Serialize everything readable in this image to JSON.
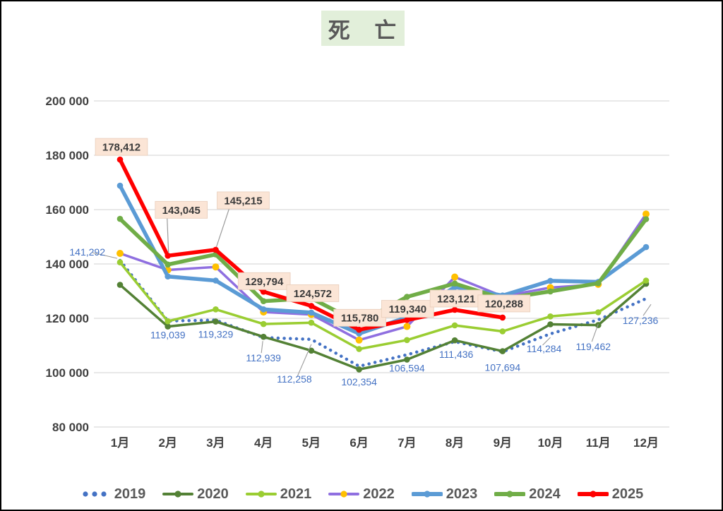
{
  "title": "死 亡",
  "colors": {
    "title_bg": "#e2efda",
    "title_text": "#595959",
    "axis_text": "#404040",
    "grid": "#d9d9d9",
    "label_box_bg": "#fbe5d6",
    "label_box_border": "#e8cdba",
    "boxed_label_text": "#3b3b3b",
    "plain_label_text": "#4472c4",
    "leader_line": "#9a9a9a",
    "legend_text": "#595959"
  },
  "chart_data": {
    "type": "line",
    "title": "死 亡",
    "categories": [
      "1月",
      "2月",
      "3月",
      "4月",
      "5月",
      "6月",
      "7月",
      "8月",
      "9月",
      "10月",
      "11月",
      "12月"
    ],
    "ylim": [
      80000,
      200000
    ],
    "grid": true,
    "legend_position": "bottom",
    "yticks": [
      {
        "value": 200000,
        "label": "200 000"
      },
      {
        "value": 180000,
        "label": "180 000"
      },
      {
        "value": 160000,
        "label": "160 000"
      },
      {
        "value": 140000,
        "label": "140 000"
      },
      {
        "value": 120000,
        "label": "120 000"
      },
      {
        "value": 100000,
        "label": "100 000"
      },
      {
        "value": 80000,
        "label": "80 000"
      }
    ],
    "series": [
      {
        "name": "2019",
        "color": "#4472c4",
        "style": "dotted",
        "width": 4.5,
        "marker": false,
        "values": [
          141292,
          119039,
          119329,
          112939,
          112258,
          102354,
          106594,
          111436,
          107694,
          114284,
          119462,
          127236
        ],
        "label_style": "plain",
        "point_labels": [
          "141,292",
          "119,039",
          "119,329",
          "112,939",
          "112,258",
          "102,354",
          "106,594",
          "111,436",
          "107,694",
          "114,284",
          "119,462",
          "127,236"
        ]
      },
      {
        "name": "2020",
        "color": "#538135",
        "style": "solid",
        "width": 3.5,
        "marker": true,
        "marker_color": "#538135",
        "values": [
          132300,
          117000,
          118800,
          113200,
          108100,
          101200,
          104800,
          111900,
          107900,
          117800,
          117500,
          132700
        ]
      },
      {
        "name": "2021",
        "color": "#9acd32",
        "style": "solid",
        "width": 3.5,
        "marker": true,
        "marker_color": "#9acd32",
        "values": [
          140600,
          118900,
          123300,
          117900,
          118400,
          108700,
          112000,
          117400,
          115200,
          120700,
          122200,
          133900
        ]
      },
      {
        "name": "2022",
        "color": "#8f6fe0",
        "style": "solid",
        "width": 3.5,
        "marker": true,
        "marker_color": "#ffc000",
        "values": [
          143900,
          137800,
          138900,
          122300,
          121400,
          112000,
          117000,
          135200,
          128100,
          131300,
          132500,
          158400
        ]
      },
      {
        "name": "2023",
        "color": "#5b9bd5",
        "style": "solid",
        "width": 5.5,
        "marker": true,
        "marker_color": "#5b9bd5",
        "values": [
          168800,
          135400,
          133900,
          123300,
          122100,
          114400,
          120400,
          131500,
          128400,
          133800,
          133400,
          146200
        ]
      },
      {
        "name": "2024",
        "color": "#70ad47",
        "style": "solid",
        "width": 5.5,
        "marker": true,
        "marker_color": "#70ad47",
        "values": [
          156600,
          139800,
          143500,
          126300,
          127400,
          118300,
          127900,
          132800,
          127200,
          129900,
          132900,
          156500
        ]
      },
      {
        "name": "2025",
        "color": "#ff0000",
        "style": "solid",
        "width": 5.5,
        "marker": true,
        "marker_color": "#ff0000",
        "values": [
          178412,
          143045,
          145215,
          129794,
          124572,
          115780,
          119340,
          123121,
          120288,
          null,
          null,
          null
        ],
        "label_style": "boxed",
        "point_labels": [
          "178,412",
          "143,045",
          "145,215",
          "129,794",
          "124,572",
          "115,780",
          "119,340",
          "123,121",
          "120,288",
          null,
          null,
          null
        ]
      }
    ]
  }
}
